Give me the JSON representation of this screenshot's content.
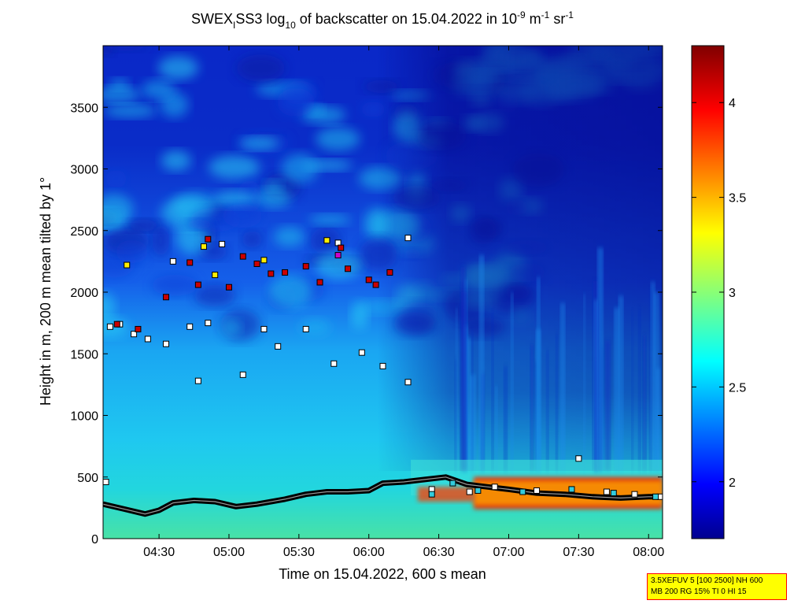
{
  "chart_data": {
    "type": "heatmap",
    "title": {
      "pre": "SWEX",
      "sub1": "I",
      "mid": "SS3 log",
      "sub2": "10",
      "post": " of backscatter on 15.04.2022 in 10",
      "sup1": "-9",
      "unit_m": " m",
      "sup2": "-1",
      "unit_sr": " sr",
      "sup3": "-1"
    },
    "xlabel": "Time on 15.04.2022, 600 s mean",
    "ylabel": "Height in m, 200 m mean tilted by 1°",
    "x_range_hours": [
      4.1,
      8.1
    ],
    "xticks": [
      {
        "h": 4.5,
        "label": "04:30"
      },
      {
        "h": 5.0,
        "label": "05:00"
      },
      {
        "h": 5.5,
        "label": "05:30"
      },
      {
        "h": 6.0,
        "label": "06:00"
      },
      {
        "h": 6.5,
        "label": "06:30"
      },
      {
        "h": 7.0,
        "label": "07:00"
      },
      {
        "h": 7.5,
        "label": "07:30"
      },
      {
        "h": 8.0,
        "label": "08:00"
      }
    ],
    "ylim": [
      0,
      4000
    ],
    "yticks": [
      {
        "v": 0,
        "label": "0"
      },
      {
        "v": 500,
        "label": "500"
      },
      {
        "v": 1000,
        "label": "1000"
      },
      {
        "v": 1500,
        "label": "1500"
      },
      {
        "v": 2000,
        "label": "2000"
      },
      {
        "v": 2500,
        "label": "2500"
      },
      {
        "v": 3000,
        "label": "3000"
      },
      {
        "v": 3500,
        "label": "3500"
      }
    ],
    "colorbar": {
      "range": [
        1.7,
        4.3
      ],
      "ticks": [
        {
          "v": 2,
          "label": "2"
        },
        {
          "v": 2.5,
          "label": "2.5"
        },
        {
          "v": 3,
          "label": "3"
        },
        {
          "v": 3.5,
          "label": "3.5"
        },
        {
          "v": 4,
          "label": "4"
        }
      ],
      "colormap": "jet"
    },
    "mixing_layer_line": [
      [
        4.1,
        280
      ],
      [
        4.25,
        240
      ],
      [
        4.4,
        200
      ],
      [
        4.5,
        230
      ],
      [
        4.6,
        290
      ],
      [
        4.75,
        310
      ],
      [
        4.9,
        300
      ],
      [
        5.05,
        260
      ],
      [
        5.2,
        280
      ],
      [
        5.4,
        320
      ],
      [
        5.55,
        360
      ],
      [
        5.7,
        380
      ],
      [
        5.85,
        380
      ],
      [
        6.0,
        390
      ],
      [
        6.1,
        450
      ],
      [
        6.25,
        460
      ],
      [
        6.4,
        480
      ],
      [
        6.55,
        500
      ],
      [
        6.7,
        440
      ],
      [
        6.85,
        420
      ],
      [
        7.0,
        400
      ],
      [
        7.2,
        370
      ],
      [
        7.4,
        360
      ],
      [
        7.6,
        340
      ],
      [
        7.8,
        330
      ],
      [
        8.0,
        340
      ],
      [
        8.1,
        340
      ]
    ],
    "markers": [
      {
        "c": "#ffffff",
        "pts": [
          [
            4.12,
            460
          ],
          [
            4.15,
            1720
          ],
          [
            4.22,
            1740
          ],
          [
            4.32,
            1660
          ],
          [
            4.42,
            1620
          ],
          [
            4.55,
            1580
          ],
          [
            4.72,
            1720
          ],
          [
            4.78,
            1280
          ],
          [
            4.85,
            1750
          ],
          [
            5.1,
            1330
          ],
          [
            5.25,
            1700
          ],
          [
            5.35,
            1560
          ],
          [
            5.55,
            1700
          ],
          [
            5.75,
            1420
          ],
          [
            5.95,
            1510
          ],
          [
            6.1,
            1400
          ],
          [
            6.28,
            1270
          ],
          [
            6.28,
            2440
          ],
          [
            6.45,
            400
          ],
          [
            6.72,
            380
          ],
          [
            6.9,
            420
          ],
          [
            7.2,
            390
          ],
          [
            7.5,
            650
          ],
          [
            7.7,
            380
          ],
          [
            7.9,
            360
          ],
          [
            8.08,
            340
          ],
          [
            4.6,
            2250
          ],
          [
            4.95,
            2390
          ],
          [
            5.78,
            2400
          ]
        ]
      },
      {
        "c": "#cc0000",
        "pts": [
          [
            4.2,
            1740
          ],
          [
            4.35,
            1700
          ],
          [
            4.55,
            1960
          ],
          [
            4.72,
            2240
          ],
          [
            4.78,
            2060
          ],
          [
            4.85,
            2430
          ],
          [
            5.0,
            2040
          ],
          [
            5.1,
            2290
          ],
          [
            5.2,
            2230
          ],
          [
            5.3,
            2150
          ],
          [
            5.4,
            2160
          ],
          [
            5.55,
            2210
          ],
          [
            5.65,
            2080
          ],
          [
            5.8,
            2360
          ],
          [
            5.85,
            2190
          ],
          [
            6.0,
            2100
          ],
          [
            6.05,
            2060
          ],
          [
            6.15,
            2160
          ]
        ]
      },
      {
        "c": "#ffee00",
        "pts": [
          [
            4.27,
            2220
          ],
          [
            4.82,
            2370
          ],
          [
            4.9,
            2140
          ],
          [
            5.25,
            2260
          ],
          [
            5.7,
            2420
          ]
        ]
      },
      {
        "c": "#cc00cc",
        "pts": [
          [
            5.78,
            2300
          ]
        ]
      },
      {
        "c": "#33ccdd",
        "pts": [
          [
            6.45,
            360
          ],
          [
            6.6,
            450
          ],
          [
            6.78,
            390
          ],
          [
            7.1,
            380
          ],
          [
            7.45,
            400
          ],
          [
            7.75,
            370
          ],
          [
            8.05,
            340
          ]
        ]
      }
    ],
    "annotation_box": {
      "line1": "3.5XEFUV 5 [100 2500] NH 600",
      "line2": "MB 200 RG 15% TI 0 HI 15"
    }
  }
}
